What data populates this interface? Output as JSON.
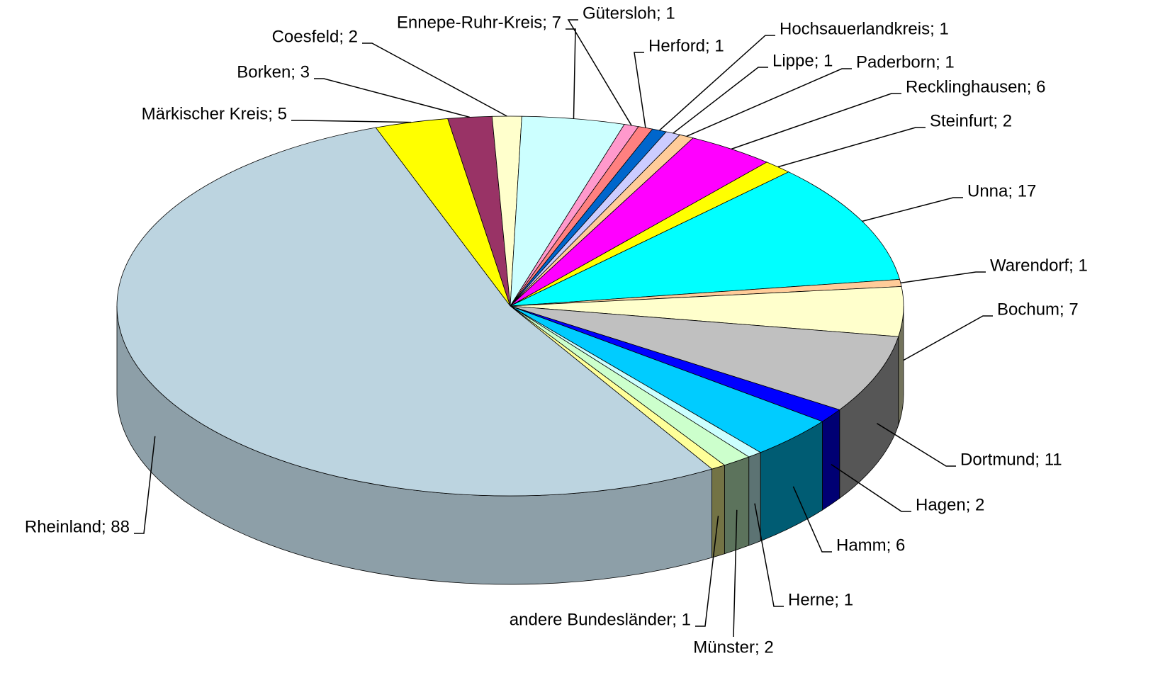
{
  "chart_data": {
    "type": "pie3d",
    "values": [
      5,
      3,
      2,
      7,
      1,
      1,
      1,
      1,
      1,
      6,
      2,
      17,
      1,
      7,
      11,
      2,
      6,
      1,
      2,
      1,
      88
    ],
    "value_labels": [
      "Märkischer Kreis; 5",
      "Borken; 3",
      "Coesfeld; 2",
      "Ennepe-Ruhr-Kreis; 7",
      "Gütersloh; 1",
      "Herford; 1",
      "Hochsauerlandkreis; 1",
      "Lippe; 1",
      "Paderborn; 1",
      "Recklinghausen; 6",
      "Steinfurt; 2",
      "Unna; 17",
      "Warendorf; 1",
      "Bochum; 7",
      "Dortmund; 11",
      "Hagen; 2",
      "Hamm; 6",
      "Herne; 1",
      "Münster; 2",
      "andere Bundesländer; 1",
      "Rheinland; 88"
    ],
    "colors": [
      "#ffff00",
      "#993366",
      "#ffffcc",
      "#ccffff",
      "#ff99cc",
      "#ff8080",
      "#0066cc",
      "#ccccff",
      "#ffcc99",
      "#ff00ff",
      "#ffff00",
      "#00ffff",
      "#ffcc99",
      "#ffffcc",
      "#c0c0c0",
      "#0000ff",
      "#00ccff",
      "#ccffff",
      "#ccffcc",
      "#ffff99",
      "#bcd4e0"
    ]
  }
}
